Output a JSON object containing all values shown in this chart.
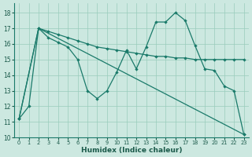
{
  "bg_color": "#cce8e0",
  "line_color": "#1a7a6a",
  "grid_color": "#99ccbb",
  "xlabel": "Humidex (Indice chaleur)",
  "xlim": [
    -0.5,
    23.5
  ],
  "ylim": [
    10,
    18.6
  ],
  "yticks": [
    10,
    11,
    12,
    13,
    14,
    15,
    16,
    17,
    18
  ],
  "xticks": [
    0,
    1,
    2,
    3,
    4,
    5,
    6,
    7,
    8,
    9,
    10,
    11,
    12,
    13,
    14,
    15,
    16,
    17,
    18,
    19,
    20,
    21,
    22,
    23
  ],
  "lineA": {
    "x": [
      0,
      2,
      3,
      4,
      5,
      6,
      7,
      8,
      9,
      10,
      11,
      12,
      13,
      14,
      15,
      16,
      17,
      18,
      19,
      20,
      21,
      22,
      23
    ],
    "y": [
      11.2,
      17.0,
      16.8,
      16.6,
      16.4,
      16.2,
      16.0,
      15.8,
      15.7,
      15.6,
      15.5,
      15.4,
      15.3,
      15.2,
      15.2,
      15.1,
      15.1,
      15.0,
      15.0,
      15.0,
      15.0,
      15.0,
      15.0
    ]
  },
  "lineB": {
    "x": [
      0,
      1,
      2,
      3,
      4,
      5,
      6,
      7,
      8,
      9,
      10,
      11,
      12,
      13,
      14,
      15,
      16,
      17,
      18,
      19,
      20,
      21,
      22,
      23
    ],
    "y": [
      11.2,
      12.0,
      17.0,
      16.4,
      16.1,
      15.8,
      15.0,
      13.0,
      12.5,
      13.0,
      14.2,
      15.6,
      14.4,
      15.8,
      17.4,
      17.4,
      18.0,
      17.5,
      15.9,
      14.4,
      14.3,
      13.3,
      13.0,
      10.2
    ]
  },
  "lineC": {
    "x": [
      0,
      2,
      23
    ],
    "y": [
      11.2,
      17.0,
      10.2
    ]
  }
}
